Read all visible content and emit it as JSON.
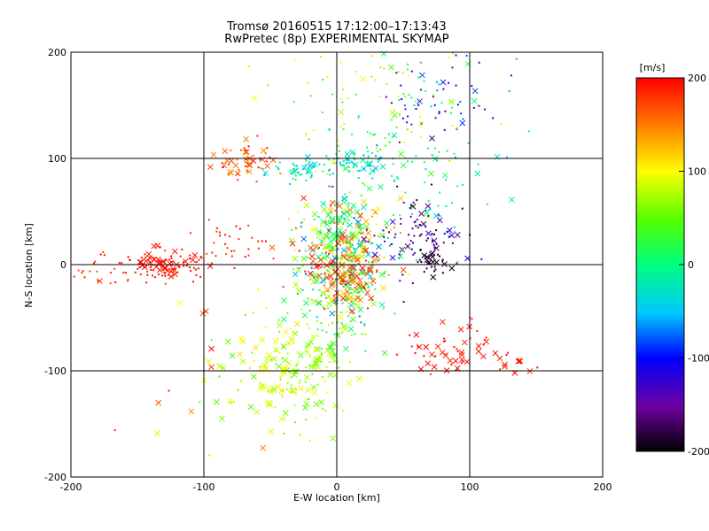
{
  "figure": {
    "title": "Tromsø 20160515 17:12:00–17:13:43",
    "subtitle": "RwPretec (8p) EXPERIMENTAL SKYMAP"
  },
  "chart_data": {
    "type": "scatter",
    "xlabel": "E-W location [km]",
    "ylabel": "N-S location [km]",
    "xlim": [
      -200,
      200
    ],
    "ylim": [
      -200,
      200
    ],
    "xticks": [
      -200,
      -100,
      0,
      100,
      200
    ],
    "yticks": [
      -200,
      -100,
      0,
      100,
      200
    ],
    "grid_lines": [
      -100,
      0,
      100
    ],
    "colorbar": {
      "unit": "[m/s]",
      "range": [
        -200,
        200
      ],
      "ticks": [
        200,
        100,
        0,
        -100,
        -200
      ],
      "colormap": [
        "#000000",
        "#6e00a0",
        "#0000ff",
        "#00c8ff",
        "#00ff7f",
        "#52ff00",
        "#ffff00",
        "#ff7f00",
        "#ff0000"
      ]
    },
    "marker_types": [
      "small dot",
      "cross"
    ],
    "clusters": [
      {
        "x": -130,
        "y": 0,
        "sx": 12,
        "sy": 7,
        "vmin": 185,
        "vmax": 200,
        "count": 90,
        "cross_frac": 0.25
      },
      {
        "x": -155,
        "y": -5,
        "sx": 30,
        "sy": 10,
        "vmin": 170,
        "vmax": 200,
        "count": 45,
        "cross_frac": 0.05
      },
      {
        "x": -70,
        "y": 98,
        "sx": 10,
        "sy": 9,
        "vmin": 140,
        "vmax": 200,
        "count": 55,
        "cross_frac": 0.45
      },
      {
        "x": -80,
        "y": 20,
        "sx": 15,
        "sy": 12,
        "vmin": 170,
        "vmax": 200,
        "count": 35,
        "cross_frac": 0.1
      },
      {
        "x": -30,
        "y": -100,
        "sx": 20,
        "sy": 28,
        "vmin": 50,
        "vmax": 110,
        "count": 180,
        "cross_frac": 0.45
      },
      {
        "x": 5,
        "y": 10,
        "sx": 18,
        "sy": 28,
        "vmin": -80,
        "vmax": 200,
        "count": 420,
        "cross_frac": 0.35
      },
      {
        "x": -25,
        "y": 88,
        "sx": 12,
        "sy": 6,
        "vmin": -60,
        "vmax": 20,
        "count": 60,
        "cross_frac": 0.2
      },
      {
        "x": 15,
        "y": 95,
        "sx": 10,
        "sy": 6,
        "vmin": -60,
        "vmax": 20,
        "count": 55,
        "cross_frac": 0.25
      },
      {
        "x": 60,
        "y": 25,
        "sx": 18,
        "sy": 20,
        "vmin": -200,
        "vmax": -110,
        "count": 90,
        "cross_frac": 0.2
      },
      {
        "x": 80,
        "y": 150,
        "sx": 25,
        "sy": 25,
        "vmin": -170,
        "vmax": -40,
        "count": 60,
        "cross_frac": 0.15
      },
      {
        "x": 85,
        "y": -80,
        "sx": 15,
        "sy": 12,
        "vmin": 180,
        "vmax": 200,
        "count": 55,
        "cross_frac": 0.55
      },
      {
        "x": 40,
        "y": 150,
        "sx": 40,
        "sy": 35,
        "vmin": 0,
        "vmax": 120,
        "count": 110,
        "cross_frac": 0.15
      },
      {
        "x": 0,
        "y": -40,
        "sx": 15,
        "sy": 30,
        "vmin": 0,
        "vmax": 90,
        "count": 120,
        "cross_frac": 0.3
      },
      {
        "x": -100,
        "y": -110,
        "sx": 25,
        "sy": 40,
        "vmin": 30,
        "vmax": 200,
        "count": 30,
        "cross_frac": 0.5
      },
      {
        "x": 10,
        "y": -10,
        "sx": 12,
        "sy": 12,
        "vmin": 150,
        "vmax": 200,
        "count": 60,
        "cross_frac": 0.5
      },
      {
        "x": 60,
        "y": 80,
        "sx": 35,
        "sy": 40,
        "vmin": -40,
        "vmax": 40,
        "count": 80,
        "cross_frac": 0.2
      },
      {
        "x": 140,
        "y": -95,
        "sx": 10,
        "sy": 6,
        "vmin": 180,
        "vmax": 200,
        "count": 10,
        "cross_frac": 0.8
      },
      {
        "x": 70,
        "y": 0,
        "sx": 5,
        "sy": 6,
        "vmin": -200,
        "vmax": -180,
        "count": 25,
        "cross_frac": 0.4
      }
    ]
  }
}
